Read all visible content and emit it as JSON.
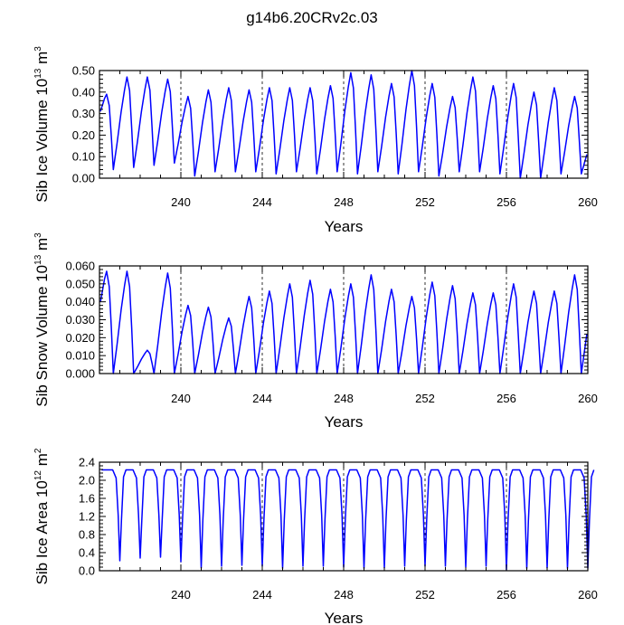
{
  "title": "g14b6.20CRv2c.03",
  "colors": {
    "line": "#0000ff",
    "axis": "#000000",
    "grid": "#000000"
  },
  "chart_data": [
    {
      "type": "line",
      "title": "g14b6.20CRv2c.03",
      "ylabel_base": "Sib Ice Volume 10",
      "ylabel_exp": "13",
      "ylabel_unit": " m",
      "ylabel_unit_exp": "3",
      "xlabel": "Years",
      "xlim": [
        236.0,
        260.0
      ],
      "ylim": [
        0.0,
        0.5
      ],
      "xticks": [
        240,
        244,
        248,
        252,
        256,
        260
      ],
      "yticks": [
        0.0,
        0.1,
        0.2,
        0.3,
        0.4,
        0.5
      ],
      "ytick_labels": [
        "0.00",
        "0.10",
        "0.20",
        "0.30",
        "0.40",
        "0.50"
      ],
      "dashed_x": [
        240,
        244,
        248,
        252,
        256
      ],
      "series": [
        {
          "name": "ice_volume",
          "peaks": [
            0.39,
            0.47,
            0.47,
            0.46,
            0.38,
            0.41,
            0.42,
            0.41,
            0.42,
            0.42,
            0.42,
            0.43,
            0.49,
            0.48,
            0.44,
            0.5,
            0.44,
            0.38,
            0.47,
            0.43,
            0.44,
            0.4,
            0.42,
            0.38
          ],
          "troughs": [
            0.04,
            0.05,
            0.06,
            0.07,
            0.01,
            0.03,
            0.03,
            0.03,
            0.02,
            0.03,
            0.02,
            0.03,
            0.02,
            0.03,
            0.02,
            0.03,
            0.01,
            0.03,
            0.03,
            0.02,
            0.0,
            0.0,
            0.02,
            0.02
          ],
          "start": 0.31
        }
      ]
    },
    {
      "type": "line",
      "ylabel_base": "Sib Snow Volume 10",
      "ylabel_exp": "13",
      "ylabel_unit": " m",
      "ylabel_unit_exp": "3",
      "xlabel": "Years",
      "xlim": [
        236.0,
        260.0
      ],
      "ylim": [
        0.0,
        0.06
      ],
      "xticks": [
        240,
        244,
        248,
        252,
        256,
        260
      ],
      "yticks": [
        0.0,
        0.01,
        0.02,
        0.03,
        0.04,
        0.05,
        0.06
      ],
      "ytick_labels": [
        "0.000",
        "0.010",
        "0.020",
        "0.030",
        "0.040",
        "0.050",
        "0.060"
      ],
      "dashed_x": [
        240,
        244,
        248,
        252,
        256
      ],
      "series": [
        {
          "name": "snow_volume",
          "peaks": [
            0.057,
            0.057,
            0.013,
            0.056,
            0.038,
            0.037,
            0.031,
            0.043,
            0.046,
            0.05,
            0.052,
            0.047,
            0.05,
            0.055,
            0.047,
            0.043,
            0.051,
            0.049,
            0.045,
            0.045,
            0.05,
            0.046,
            0.046,
            0.055
          ],
          "troughs": [
            0.0,
            0.0,
            0.0,
            0.0,
            0.0,
            0.0,
            0.0,
            0.0,
            0.0,
            0.0,
            0.0,
            0.0,
            0.0,
            0.0,
            0.0,
            0.0,
            0.0,
            0.0,
            0.0,
            0.0,
            0.0,
            0.0,
            0.0,
            0.0
          ],
          "start": 0.04
        }
      ]
    },
    {
      "type": "line",
      "ylabel_base": "Sib Ice Area 10",
      "ylabel_exp": "12",
      "ylabel_unit": " m",
      "ylabel_unit_exp": "2",
      "xlabel": "Years",
      "xlim": [
        236.0,
        260.0
      ],
      "ylim": [
        0.0,
        2.4
      ],
      "xticks": [
        240,
        244,
        248,
        252,
        256,
        260
      ],
      "yticks": [
        0.0,
        0.4,
        0.8,
        1.2,
        1.6,
        2.0,
        2.4
      ],
      "ytick_labels": [
        "0.0",
        "0.4",
        "0.8",
        "1.2",
        "1.6",
        "2.0",
        "2.4"
      ],
      "dashed_x": [
        240,
        244,
        248,
        252,
        256
      ],
      "series": [
        {
          "name": "ice_area",
          "plateau": 2.23,
          "troughs": [
            0.22,
            0.28,
            0.3,
            0.2,
            0.06,
            0.1,
            0.12,
            0.1,
            0.05,
            0.1,
            0.1,
            0.08,
            0.05,
            0.06,
            0.1,
            0.1,
            0.1,
            0.08,
            0.1,
            0.02,
            0.05,
            0.06,
            0.05,
            0.06
          ],
          "start": 2.23
        }
      ]
    }
  ]
}
